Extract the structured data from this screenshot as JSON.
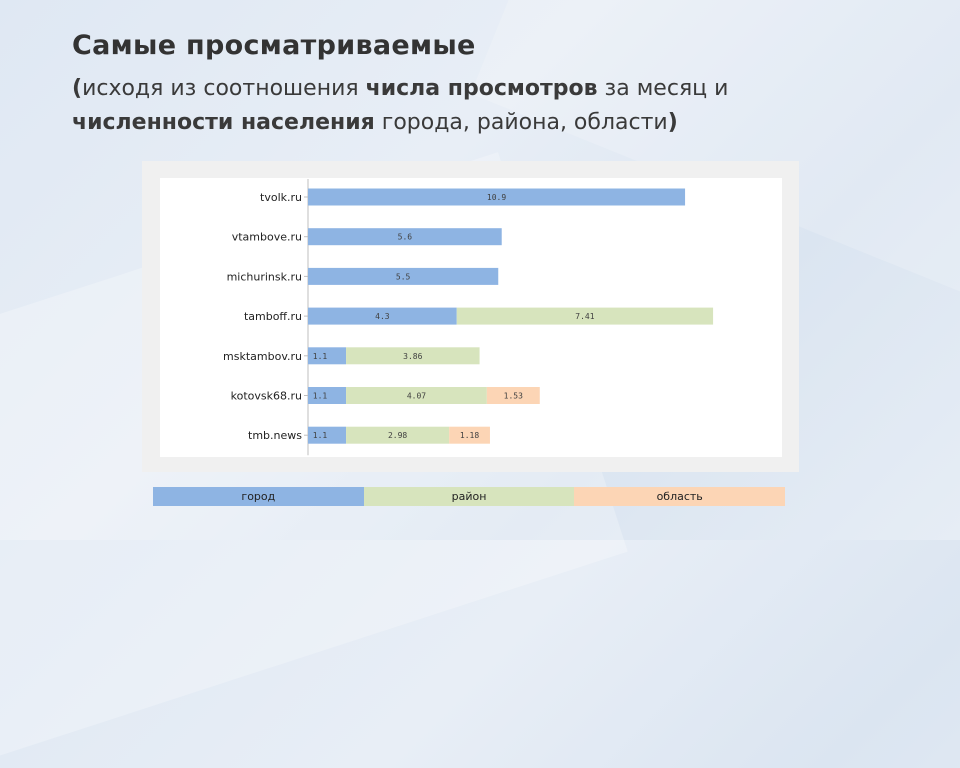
{
  "slide": {
    "title": "Самые просматриваемые",
    "subtitle": {
      "open_paren": "(",
      "part1": "исходя из соотношения ",
      "bold1": "числа просмотров",
      "part2": " за месяц и ",
      "bold2": "численности населения",
      "part3": " города, района, области",
      "close_paren": ")"
    }
  },
  "chart_data": {
    "type": "bar",
    "orientation": "horizontal",
    "stacked": true,
    "categories": [
      "tvolk.ru",
      "vtambove.ru",
      "michurinsk.ru",
      "tamboff.ru",
      "msktambov.ru",
      "kotovsk68.ru",
      "tmb.news"
    ],
    "series": [
      {
        "name": "город",
        "color": "#8eb4e3",
        "values": [
          10.9,
          5.6,
          5.5,
          4.3,
          1.1,
          1.1,
          1.1
        ],
        "labels": [
          "10.9",
          "5.6",
          "5.5",
          "4.3",
          "1.1",
          "1.1",
          "1.1"
        ]
      },
      {
        "name": "район",
        "color": "#d7e4bd",
        "values": [
          0,
          0,
          0,
          7.41,
          3.86,
          4.07,
          2.98
        ],
        "labels": [
          "",
          "",
          "",
          "7.41",
          "3.86",
          "4.07",
          "2.98"
        ]
      },
      {
        "name": "область",
        "color": "#fcd5b5",
        "values": [
          0,
          0,
          0,
          0,
          0,
          1.53,
          1.18
        ],
        "labels": [
          "",
          "",
          "",
          "",
          "",
          "1.53",
          "1.18"
        ]
      }
    ],
    "xlim": [
      0,
      13.5
    ],
    "grid": false,
    "legend": "bottom"
  }
}
